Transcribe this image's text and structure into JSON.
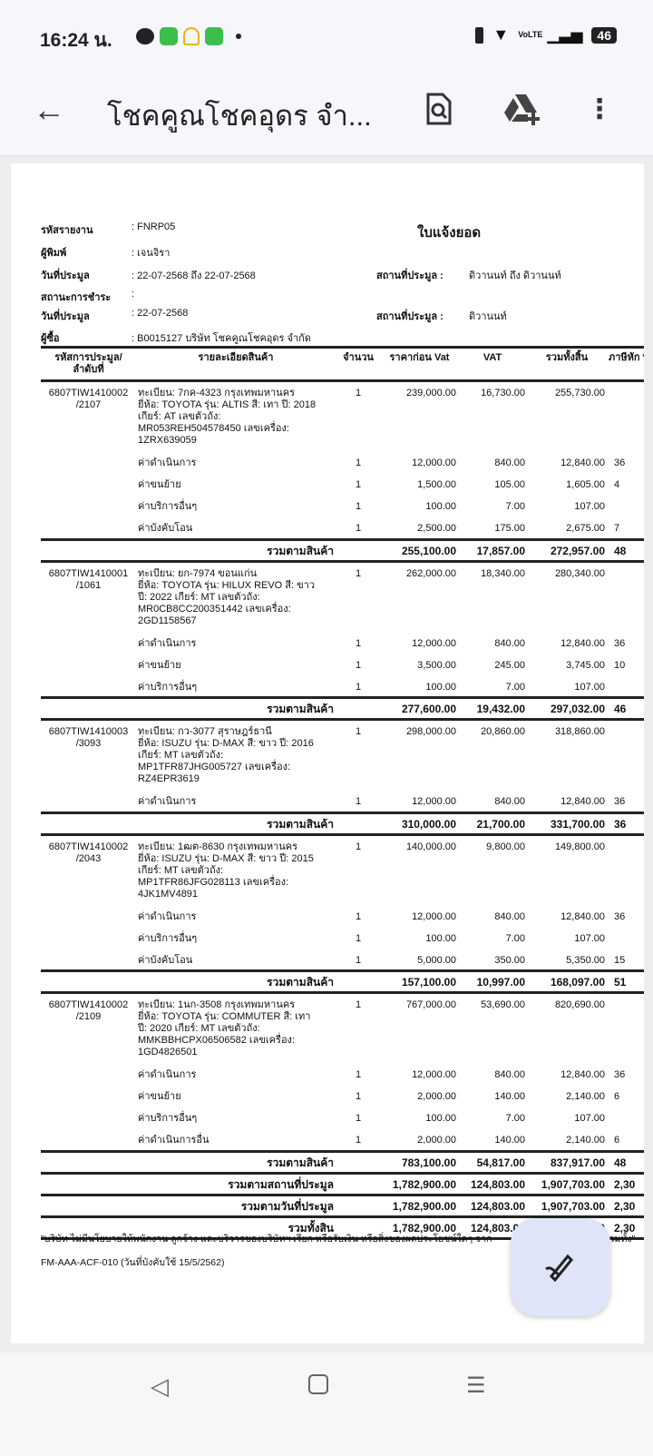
{
  "status": {
    "time": "16:24 น.",
    "battery": "46",
    "network": "VoLTE",
    "icons": [
      "line-icon",
      "messages-icon",
      "bell-icon",
      "store-icon",
      "dot-icon",
      "vibrate-icon",
      "wifi-icon",
      "signal-icon",
      "battery-icon"
    ]
  },
  "appbar": {
    "title": "โชคคูณโชคอุดร จำ...",
    "icons": [
      "back-arrow-icon",
      "document-search-icon",
      "drive-add-icon",
      "more-vert-icon"
    ]
  },
  "report": {
    "title": "ใบแจ้งยอด",
    "fields": [
      {
        "label": "รหัสรายงาน",
        "value": ": FNRP05"
      },
      {
        "label": "ผู้พิมพ์",
        "value": ": เจนจิรา"
      },
      {
        "label": "วันที่ประมูล",
        "value": ": 22-07-2568 ถึง 22-07-2568"
      },
      {
        "label": "สถานะการชำระ",
        "value": ":"
      },
      {
        "label": "วันที่ประมูล",
        "value": ": 22-07-2568"
      },
      {
        "label": "ผู้ซื้อ",
        "value": ": B0015127 บริษัท โชคคูณโชคอุดร  จำกัด"
      }
    ],
    "right_fields": [
      {
        "label": "สถานที่ประมูล :",
        "value": "ดิวานนท์ ถึง ดิวานนท์"
      },
      {
        "label": "สถานที่ประมูล :",
        "value": "ดิวานนท์"
      }
    ],
    "columns": [
      "รหัสการประมูล/ ลำดับที่",
      "รายละเอียดสินค้า",
      "จำนวน",
      "ราคาก่อน Vat",
      "VAT",
      "รวมทั้งสิ้น",
      "ภาษีหัก ที่จ่"
    ],
    "groups": [
      {
        "code": "6807TIW1410002 /2107",
        "desc": [
          "ทะเบียน: 7กค-4323 กรุงเทพมหานคร",
          "ยี่ห้อ: TOYOTA รุ่น: ALTIS  สี: เทา ปี: 2018",
          "เกียร์: AT เลขตัวถัง:",
          "MR053REH504578450 เลขเครื่อง:",
          "1ZRX639059"
        ],
        "qty": "1",
        "pre": "239,000.00",
        "vat": "16,730.00",
        "total": "255,730.00",
        "wht": "",
        "subs": [
          [
            "ค่าดำเนินการ",
            "1",
            "12,000.00",
            "840.00",
            "12,840.00",
            "36"
          ],
          [
            "ค่าขนย้าย",
            "1",
            "1,500.00",
            "105.00",
            "1,605.00",
            "4"
          ],
          [
            "ค่าบริการอื่นๆ",
            "1",
            "100.00",
            "7.00",
            "107.00",
            ""
          ],
          [
            "ค่าบังคับโอน",
            "1",
            "2,500.00",
            "175.00",
            "2,675.00",
            "7"
          ]
        ],
        "subtotal": {
          "label": "รวมตามสินค้า",
          "pre": "255,100.00",
          "vat": "17,857.00",
          "total": "272,957.00",
          "wht": "48"
        }
      },
      {
        "code": "6807TIW1410001 /1061",
        "desc": [
          "ทะเบียน: ยก-7974 ขอนแก่น",
          "ยี่ห้อ: TOYOTA รุ่น: HILUX REVO  สี: ขาว",
          "ปี: 2022 เกียร์: MT เลขตัวถัง:",
          "MR0CB8CC200351442 เลขเครื่อง:",
          "2GD1158567"
        ],
        "qty": "1",
        "pre": "262,000.00",
        "vat": "18,340.00",
        "total": "280,340.00",
        "wht": "",
        "subs": [
          [
            "ค่าดำเนินการ",
            "1",
            "12,000.00",
            "840.00",
            "12,840.00",
            "36"
          ],
          [
            "ค่าขนย้าย",
            "1",
            "3,500.00",
            "245.00",
            "3,745.00",
            "10"
          ],
          [
            "ค่าบริการอื่นๆ",
            "1",
            "100.00",
            "7.00",
            "107.00",
            ""
          ]
        ],
        "subtotal": {
          "label": "รวมตามสินค้า",
          "pre": "277,600.00",
          "vat": "19,432.00",
          "total": "297,032.00",
          "wht": "46"
        }
      },
      {
        "code": "6807TIW1410003 /3093",
        "desc": [
          "ทะเบียน: กว-3077 สุราษฎร์ธานี",
          "ยี่ห้อ: ISUZU รุ่น: D-MAX  สี: ขาว ปี: 2016",
          "เกียร์: MT เลขตัวถัง:",
          "MP1TFR87JHG005727 เลขเครื่อง:",
          "RZ4EPR3619"
        ],
        "qty": "1",
        "pre": "298,000.00",
        "vat": "20,860.00",
        "total": "318,860.00",
        "wht": "",
        "subs": [
          [
            "ค่าดำเนินการ",
            "1",
            "12,000.00",
            "840.00",
            "12,840.00",
            "36"
          ]
        ],
        "subtotal": {
          "label": "รวมตามสินค้า",
          "pre": "310,000.00",
          "vat": "21,700.00",
          "total": "331,700.00",
          "wht": "36"
        }
      },
      {
        "code": "6807TIW1410002 /2043",
        "desc": [
          "ทะเบียน: 1ฒต-8630 กรุงเทพมหานคร",
          "ยี่ห้อ: ISUZU รุ่น: D-MAX  สี: ขาว ปี: 2015",
          "เกียร์: MT เลขตัวถัง:",
          "MP1TFR86JFG028113 เลขเครื่อง:",
          "4JK1MV4891"
        ],
        "qty": "1",
        "pre": "140,000.00",
        "vat": "9,800.00",
        "total": "149,800.00",
        "wht": "",
        "subs": [
          [
            "ค่าดำเนินการ",
            "1",
            "12,000.00",
            "840.00",
            "12,840.00",
            "36"
          ],
          [
            "ค่าบริการอื่นๆ",
            "1",
            "100.00",
            "7.00",
            "107.00",
            ""
          ],
          [
            "ค่าบังคับโอน",
            "1",
            "5,000.00",
            "350.00",
            "5,350.00",
            "15"
          ]
        ],
        "subtotal": {
          "label": "รวมตามสินค้า",
          "pre": "157,100.00",
          "vat": "10,997.00",
          "total": "168,097.00",
          "wht": "51"
        }
      },
      {
        "code": "6807TIW1410002 /2109",
        "desc": [
          "ทะเบียน: 1นก-3508 กรุงเทพมหานคร",
          "ยี่ห้อ: TOYOTA รุ่น: COMMUTER  สี: เทา",
          "ปี: 2020 เกียร์: MT เลขตัวถัง:",
          "MMKBBHCPX06506582 เลขเครื่อง:",
          "1GD4826501"
        ],
        "qty": "1",
        "pre": "767,000.00",
        "vat": "53,690.00",
        "total": "820,690.00",
        "wht": "",
        "subs": [
          [
            "ค่าดำเนินการ",
            "1",
            "12,000.00",
            "840.00",
            "12,840.00",
            "36"
          ],
          [
            "ค่าขนย้าย",
            "1",
            "2,000.00",
            "140.00",
            "2,140.00",
            "6"
          ],
          [
            "ค่าบริการอื่นๆ",
            "1",
            "100.00",
            "7.00",
            "107.00",
            ""
          ],
          [
            "ค่าดำเนินการอื่น",
            "1",
            "2,000.00",
            "140.00",
            "2,140.00",
            "6"
          ]
        ],
        "subtotal": {
          "label": "รวมตามสินค้า",
          "pre": "783,100.00",
          "vat": "54,817.00",
          "total": "837,917.00",
          "wht": "48"
        }
      }
    ],
    "totals": [
      {
        "label": "รวมตามสถานที่ประมูล",
        "pre": "1,782,900.00",
        "vat": "124,803.00",
        "total": "1,907,703.00",
        "wht": "2,30"
      },
      {
        "label": "รวมตามวันที่ประมูล",
        "pre": "1,782,900.00",
        "vat": "124,803.00",
        "total": "1,907,703.00",
        "wht": "2,30"
      },
      {
        "label": "รวมทั้งสิน",
        "pre": "1,782,900.00",
        "vat": "124,803.00",
        "total": "1,907,703.00",
        "wht": "2,30"
      }
    ],
    "disclaimer": "\"บริษัท ไม่มีนโยบายให้พนักงาน ลูกจ้าง และบริวารของบริษัทฯ เรียก หรือรับเงิน หรือสิ่งของผลประโยชน์ใดๆ จาก",
    "disclaimer_tail": "รวมทั้ง\"",
    "form_code": "FM-AAA-ACF-010 (วันที่บังคับใช้ 15/5/2562)"
  },
  "fab": {
    "icon": "edit-pen-icon"
  },
  "nav": {
    "icons": [
      "back-triangle-icon",
      "home-square-icon",
      "recents-menu-icon"
    ]
  }
}
